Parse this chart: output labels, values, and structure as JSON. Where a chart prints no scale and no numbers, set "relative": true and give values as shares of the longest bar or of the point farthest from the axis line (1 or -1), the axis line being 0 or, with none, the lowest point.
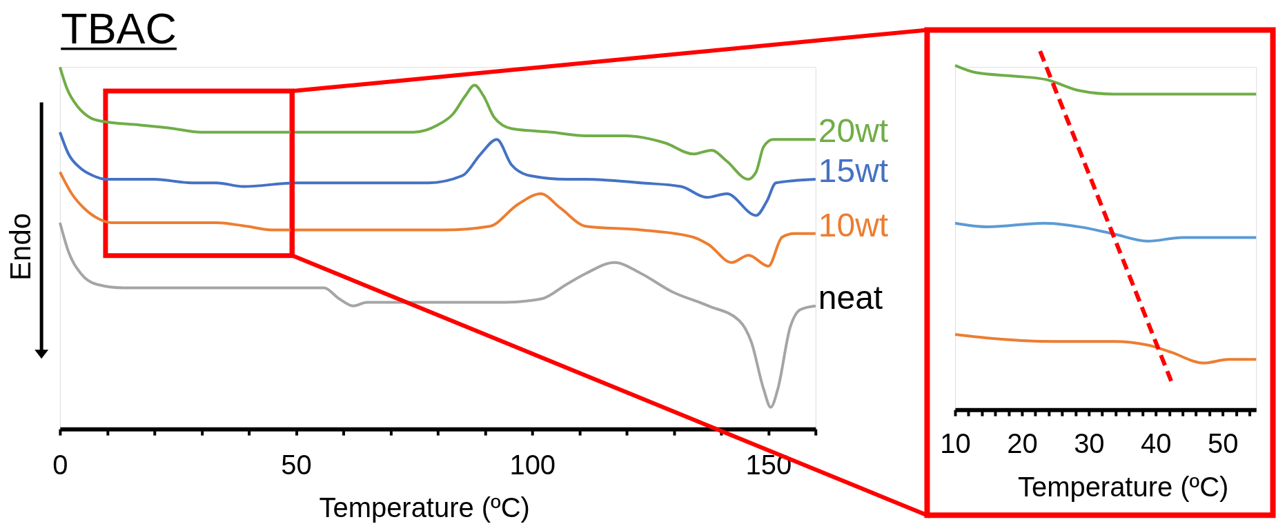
{
  "chart_data": [
    {
      "type": "line",
      "title": "TBAC",
      "xlabel": "Temperature (ºC)",
      "ylabel": "Endo",
      "relative": true,
      "xlim": [
        0,
        160
      ],
      "xticks": [
        0,
        {
          "value": 10,
          "label": null
        },
        {
          "value": 20,
          "label": null
        },
        {
          "value": 30,
          "label": null
        },
        {
          "value": 40,
          "label": null
        },
        50,
        {
          "value": 60,
          "label": null
        },
        {
          "value": 70,
          "label": null
        },
        {
          "value": 80,
          "label": null
        },
        {
          "value": 90,
          "label": null
        },
        100,
        {
          "value": 110,
          "label": null
        },
        {
          "value": 120,
          "label": null
        },
        {
          "value": 130,
          "label": null
        },
        {
          "value": 140,
          "label": null
        },
        150,
        {
          "value": 160,
          "label": null
        }
      ],
      "series": [
        {
          "name": "20wt",
          "color": "#70ad47",
          "x": [
            0,
            1.5,
            3.8,
            6.4,
            9,
            16.8,
            24,
            29.8,
            33.7,
            39.6,
            50,
            61.7,
            74.8,
            80,
            83.2,
            85.8,
            87.8,
            89.7,
            92,
            95.6,
            104.1,
            111.4,
            119.8,
            128.2,
            134.1,
            138,
            141.2,
            145.7,
            147.4,
            149,
            151,
            160
          ],
          "values": [
            1.0,
            0.94,
            0.89,
            0.86,
            0.85,
            0.84,
            0.83,
            0.82,
            0.82,
            0.82,
            0.82,
            0.82,
            0.82,
            0.84,
            0.87,
            0.92,
            0.95,
            0.92,
            0.86,
            0.83,
            0.82,
            0.81,
            0.81,
            0.79,
            0.76,
            0.77,
            0.74,
            0.69,
            0.71,
            0.78,
            0.8,
            0.8
          ]
        },
        {
          "name": "15wt",
          "color": "#4472c4",
          "x": [
            0,
            1.8,
            4.4,
            7,
            9.6,
            20,
            27.9,
            33.1,
            38.9,
            50,
            61.7,
            78,
            85.2,
            89.1,
            92.5,
            95.6,
            99.5,
            107.3,
            111.4,
            123,
            131.5,
            137,
            141.2,
            147.4,
            149.7,
            151.6,
            160
          ],
          "values": [
            0.82,
            0.76,
            0.72,
            0.7,
            0.69,
            0.69,
            0.68,
            0.68,
            0.67,
            0.68,
            0.68,
            0.68,
            0.7,
            0.76,
            0.8,
            0.73,
            0.7,
            0.69,
            0.69,
            0.68,
            0.67,
            0.64,
            0.65,
            0.59,
            0.63,
            0.68,
            0.69
          ]
        },
        {
          "name": "10wt",
          "color": "#ed7d31",
          "x": [
            0,
            2.5,
            5.1,
            8.3,
            10.9,
            20,
            33.1,
            39.6,
            44.8,
            50,
            58.5,
            81.3,
            91,
            96.9,
            101.8,
            106,
            111.4,
            123,
            134.1,
            137.3,
            142.2,
            145.8,
            150,
            152.9,
            155.5,
            160
          ],
          "values": [
            0.71,
            0.65,
            0.61,
            0.58,
            0.57,
            0.57,
            0.57,
            0.56,
            0.55,
            0.55,
            0.55,
            0.55,
            0.56,
            0.62,
            0.65,
            0.61,
            0.56,
            0.55,
            0.53,
            0.51,
            0.46,
            0.48,
            0.45,
            0.53,
            0.54,
            0.54
          ]
        },
        {
          "name": "neat",
          "color": "#a5a5a5",
          "x": [
            0,
            1.8,
            4.4,
            7.7,
            13.5,
            33.1,
            50,
            55.9,
            59.1,
            62.1,
            65,
            74.8,
            94.3,
            102.1,
            107.3,
            111.4,
            117.4,
            123,
            129.5,
            137.3,
            143.8,
            146.4,
            149,
            150.5,
            152,
            154.6,
            156.8,
            160
          ],
          "values": [
            0.57,
            0.49,
            0.43,
            0.4,
            0.39,
            0.39,
            0.39,
            0.39,
            0.36,
            0.34,
            0.35,
            0.35,
            0.35,
            0.36,
            0.4,
            0.43,
            0.46,
            0.43,
            0.38,
            0.34,
            0.3,
            0.24,
            0.11,
            0.06,
            0.11,
            0.28,
            0.33,
            0.34
          ]
        }
      ]
    },
    {
      "type": "line",
      "xlabel": "Temperature (ºC)",
      "relative": true,
      "xlim": [
        10,
        55
      ],
      "xticks": [
        10,
        {
          "value": 12,
          "label": null
        },
        {
          "value": 14,
          "label": null
        },
        {
          "value": 16,
          "label": null
        },
        {
          "value": 18,
          "label": null
        },
        20,
        {
          "value": 22,
          "label": null
        },
        {
          "value": 24,
          "label": null
        },
        {
          "value": 26,
          "label": null
        },
        {
          "value": 28,
          "label": null
        },
        30,
        {
          "value": 32,
          "label": null
        },
        {
          "value": 34,
          "label": null
        },
        {
          "value": 36,
          "label": null
        },
        {
          "value": 38,
          "label": null
        },
        40,
        {
          "value": 42,
          "label": null
        },
        {
          "value": 44,
          "label": null
        },
        {
          "value": 46,
          "label": null
        },
        {
          "value": 48,
          "label": null
        },
        50,
        {
          "value": 52,
          "label": null
        },
        {
          "value": 54,
          "label": null
        }
      ],
      "series": [
        {
          "color": "#70ad47",
          "x": [
            10,
            13.1,
            18.9,
            23.7,
            28.5,
            33.7,
            38.8,
            45.7,
            55
          ],
          "values": [
            0.96,
            0.94,
            0.93,
            0.92,
            0.89,
            0.88,
            0.88,
            0.88,
            0.88
          ]
        },
        {
          "color": "#5b9bd5",
          "x": [
            10,
            14.8,
            23.4,
            28.5,
            33.7,
            38.8,
            44,
            55
          ],
          "values": [
            0.52,
            0.51,
            0.52,
            0.51,
            0.49,
            0.47,
            0.48,
            0.48
          ]
        },
        {
          "color": "#ed7d31",
          "x": [
            10,
            14.8,
            25.1,
            33.7,
            38.8,
            42.3,
            47.1,
            50.9,
            55
          ],
          "values": [
            0.21,
            0.2,
            0.19,
            0.19,
            0.18,
            0.16,
            0.13,
            0.14,
            0.14
          ]
        },
        {
          "color": "#ff0000",
          "line_style": "dashed",
          "x": [
            22.7,
            42.3
          ],
          "values": [
            1.0,
            0.08
          ]
        }
      ]
    }
  ]
}
